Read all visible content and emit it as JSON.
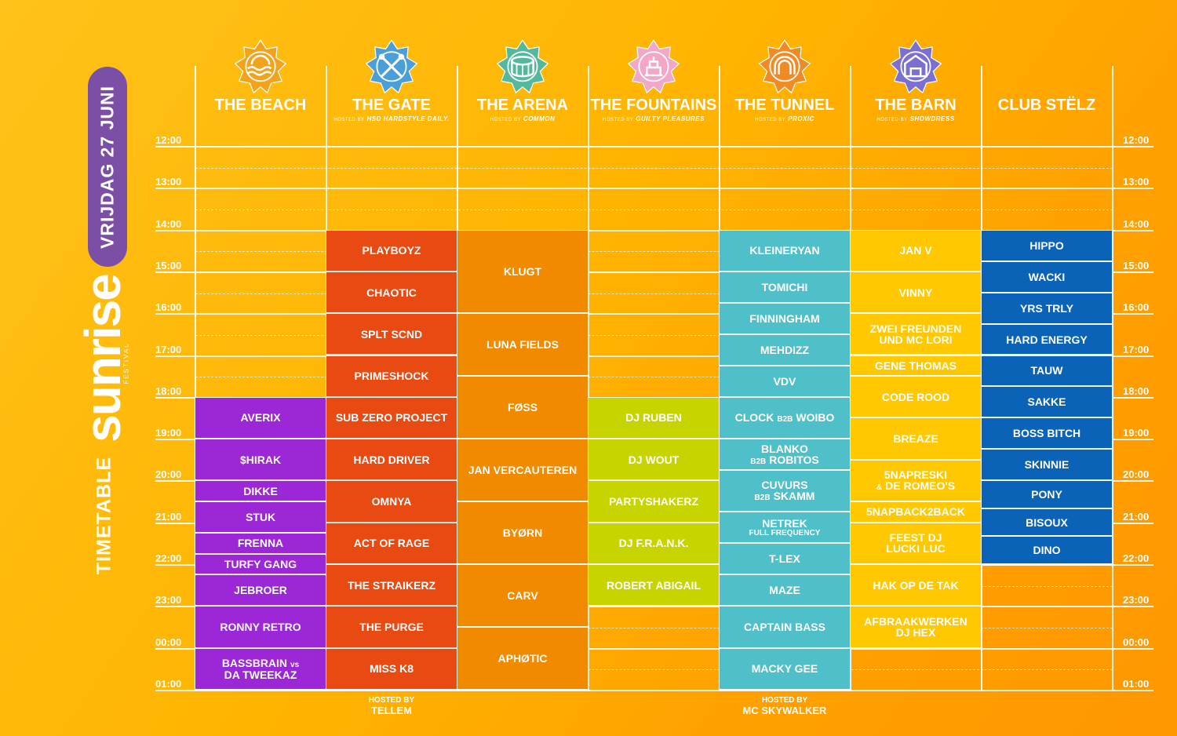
{
  "side": {
    "date": "VRIJDAG 27 JUNI",
    "logo": "sunrise",
    "logo_sub": "FESTIVAL",
    "title": "TIMETABLE"
  },
  "times": [
    "12:00",
    "13:00",
    "14:00",
    "15:00",
    "16:00",
    "17:00",
    "18:00",
    "19:00",
    "20:00",
    "21:00",
    "22:00",
    "23:00",
    "00:00",
    "01:00"
  ],
  "colors": {
    "beach": "#9c27d6",
    "gate": "#e84a12",
    "arena": "#f28a00",
    "fountains": "#c8d400",
    "tunnel": "#4fbfc9",
    "barn": "#ffc800",
    "club": "#0b63b7"
  },
  "stages": [
    {
      "id": "beach",
      "title": "THE BEACH",
      "host_prefix": "",
      "host": "",
      "icon": "sun-waves-icon",
      "icon_color": "#f3a31b",
      "slots": [
        {
          "artist": "AVERIX",
          "start": 18,
          "end": 19
        },
        {
          "artist": "$HIRAK",
          "start": 19,
          "end": 20
        },
        {
          "artist": "DIKKE",
          "start": 20,
          "end": 20.5
        },
        {
          "artist": "STUK",
          "start": 20.5,
          "end": 21.25
        },
        {
          "artist": "FRENNA",
          "start": 21.25,
          "end": 21.75
        },
        {
          "artist": "TURFY GANG",
          "start": 21.75,
          "end": 22.25
        },
        {
          "artist": "JEBROER",
          "start": 22.25,
          "end": 23
        },
        {
          "artist": "RONNY RETRO",
          "start": 23,
          "end": 24
        },
        {
          "artist": "BASSBRAIN",
          "sub": "vs",
          "artist2": "DA TWEEKAZ",
          "start": 24,
          "end": 25
        }
      ]
    },
    {
      "id": "gate",
      "title": "THE GATE",
      "host_prefix": "HOSTED BY",
      "host": "HSD HARDSTYLE DAILY.",
      "icon": "crossed-staffs-icon",
      "icon_color": "#4a9fd8",
      "footer_a": "HOSTED BY",
      "footer_b": "TELLEM",
      "slots": [
        {
          "artist": "PLAYBOYZ",
          "start": 14,
          "end": 15
        },
        {
          "artist": "CHAOTIC",
          "start": 15,
          "end": 16
        },
        {
          "artist": "SPLT SCND",
          "start": 16,
          "end": 17
        },
        {
          "artist": "PRIMESHOCK",
          "start": 17,
          "end": 18
        },
        {
          "artist": "SUB ZERO PROJECT",
          "start": 18,
          "end": 19
        },
        {
          "artist": "HARD DRIVER",
          "start": 19,
          "end": 20
        },
        {
          "artist": "OMNYA",
          "start": 20,
          "end": 21
        },
        {
          "artist": "ACT OF RAGE",
          "start": 21,
          "end": 22
        },
        {
          "artist": "THE STRAIKERZ",
          "start": 22,
          "end": 23
        },
        {
          "artist": "THE PURGE",
          "start": 23,
          "end": 24
        },
        {
          "artist": "MISS K8",
          "start": 24,
          "end": 25
        }
      ]
    },
    {
      "id": "arena",
      "title": "THE ARENA",
      "host_prefix": "HOSTED BY",
      "host": "COMMON",
      "icon": "arena-icon",
      "icon_color": "#54b89c",
      "slots": [
        {
          "artist": "KLUGT",
          "start": 14,
          "end": 16
        },
        {
          "artist": "LUNA FIELDS",
          "start": 16,
          "end": 17.5
        },
        {
          "artist": "FØSS",
          "start": 17.5,
          "end": 19
        },
        {
          "artist": "JAN VERCAUTEREN",
          "start": 19,
          "end": 20.5
        },
        {
          "artist": "BYØRN",
          "start": 20.5,
          "end": 22
        },
        {
          "artist": "CARV",
          "start": 22,
          "end": 23.5
        },
        {
          "artist": "APHØTIC",
          "start": 23.5,
          "end": 25
        }
      ]
    },
    {
      "id": "fountains",
      "title": "THE FOUNTAINS",
      "host_prefix": "HOSTED BY",
      "host": "GUILTY PLEASURES",
      "icon": "fountain-icon",
      "icon_color": "#f4a6c8",
      "slots": [
        {
          "artist": "DJ RUBEN",
          "start": 18,
          "end": 19
        },
        {
          "artist": "DJ WOUT",
          "start": 19,
          "end": 20
        },
        {
          "artist": "PARTYSHAKERZ",
          "start": 20,
          "end": 21
        },
        {
          "artist": "DJ F.R.A.N.K.",
          "start": 21,
          "end": 22
        },
        {
          "artist": "ROBERT ABIGAIL",
          "start": 22,
          "end": 23
        }
      ]
    },
    {
      "id": "tunnel",
      "title": "THE TUNNEL",
      "host_prefix": "HOSTED BY",
      "host": "PROXIC",
      "icon": "tunnel-icon",
      "icon_color": "#f08a24",
      "footer_a": "HOSTED BY",
      "footer_b": "MC SKYWALKER",
      "slots": [
        {
          "artist": "KLEINERYAN",
          "start": 14,
          "end": 15
        },
        {
          "artist": "TOMICHI",
          "start": 15,
          "end": 15.75
        },
        {
          "artist": "FINNINGHAM",
          "start": 15.75,
          "end": 16.5
        },
        {
          "artist": "MEHDIZZ",
          "start": 16.5,
          "end": 17.25
        },
        {
          "artist": "VDV",
          "start": 17.25,
          "end": 18
        },
        {
          "artist": "CLOCK",
          "sub": "B2B",
          "artist2": "WOIBO",
          "inline": true,
          "start": 18,
          "end": 19
        },
        {
          "artist": "BLANKO",
          "sub": "B2B",
          "artist2": "ROBITOS",
          "start": 19,
          "end": 19.75
        },
        {
          "artist": "CUVURS",
          "sub": "B2B",
          "artist2": "SKAMM",
          "start": 19.75,
          "end": 20.75
        },
        {
          "artist": "NETREK",
          "sub2": "FULL FREQUENCY",
          "start": 20.75,
          "end": 21.5
        },
        {
          "artist": "T-LEX",
          "start": 21.5,
          "end": 22.25
        },
        {
          "artist": "MAZE",
          "start": 22.25,
          "end": 23
        },
        {
          "artist": "CAPTAIN BASS",
          "start": 23,
          "end": 24
        },
        {
          "artist": "MACKY GEE",
          "start": 24,
          "end": 25
        }
      ]
    },
    {
      "id": "barn",
      "title": "THE BARN",
      "host_prefix": "HOSTED BY",
      "host": "SHOWDRESS",
      "icon": "barn-icon",
      "icon_color": "#7b6fd0",
      "slots": [
        {
          "artist": "JAN V",
          "start": 14,
          "end": 15
        },
        {
          "artist": "VINNY",
          "start": 15,
          "end": 16
        },
        {
          "artist": "ZWEI FREUNDEN",
          "artist2": "UND MC LORI",
          "start": 16,
          "end": 17
        },
        {
          "artist": "GENE THOMAS",
          "start": 17,
          "end": 17.5
        },
        {
          "artist": "CODE ROOD",
          "start": 17.5,
          "end": 18.5
        },
        {
          "artist": "BREAZE",
          "start": 18.5,
          "end": 19.5
        },
        {
          "artist": "5NAPRESKI",
          "sub": "&",
          "artist2": "DE ROMEO'S",
          "start": 19.5,
          "end": 20.5
        },
        {
          "artist": "5NAPBACK2BACK",
          "start": 20.5,
          "end": 21
        },
        {
          "artist": "FEEST DJ",
          "artist2": "LUCKI LUC",
          "start": 21,
          "end": 22
        },
        {
          "artist": "HAK OP DE TAK",
          "start": 22,
          "end": 23
        },
        {
          "artist": "AFBRAAKWERKEN",
          "artist2": "DJ HEX",
          "start": 23,
          "end": 24
        }
      ]
    },
    {
      "id": "club",
      "title": "CLUB STËLZ",
      "host_prefix": "",
      "host": "",
      "icon": "",
      "slots": [
        {
          "artist": "HIPPO",
          "start": 14,
          "end": 14.75
        },
        {
          "artist": "WACKI",
          "start": 14.75,
          "end": 15.5
        },
        {
          "artist": "YRS TRLY",
          "start": 15.5,
          "end": 16.25
        },
        {
          "artist": "HARD ENERGY",
          "start": 16.25,
          "end": 17
        },
        {
          "artist": "TAUW",
          "start": 17,
          "end": 17.75
        },
        {
          "artist": "SAKKE",
          "start": 17.75,
          "end": 18.5
        },
        {
          "artist": "BOSS BITCH",
          "start": 18.5,
          "end": 19.25
        },
        {
          "artist": "SKINNIE",
          "start": 19.25,
          "end": 20
        },
        {
          "artist": "PONY",
          "start": 20,
          "end": 20.67
        },
        {
          "artist": "BISOUX",
          "start": 20.67,
          "end": 21.33
        },
        {
          "artist": "DINO",
          "start": 21.33,
          "end": 22
        }
      ]
    }
  ]
}
